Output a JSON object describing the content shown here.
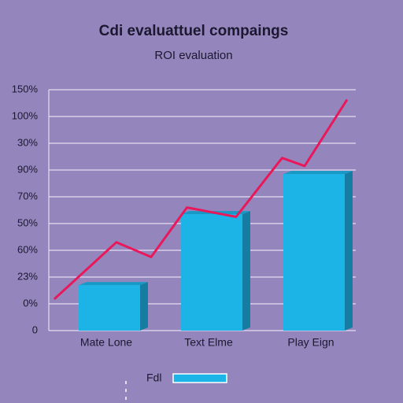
{
  "chart_data": {
    "type": "bar",
    "title": "Cdi evaluattuel compaings",
    "subtitle": "ROI evaluation",
    "categories": [
      "Mate Lone",
      "Text Elme",
      "Play Eign"
    ],
    "ylim": [
      0,
      9
    ],
    "yticks": [
      0,
      1,
      2,
      3,
      4,
      5,
      6,
      7,
      8,
      9
    ],
    "ytick_labels": [
      "0",
      "0%",
      "23%",
      "60%",
      "50%",
      "70%",
      "90%",
      "30%",
      "100%",
      "150%"
    ],
    "grid": true,
    "legend": "bottom",
    "series": [
      {
        "name": "Fdl",
        "type": "bar",
        "color": "#1cb3e6",
        "values": [
          1.7,
          4.35,
          5.85
        ]
      },
      {
        "type": "line",
        "color": "#e8185a",
        "x": [
          0.06,
          0.66,
          1.0,
          1.35,
          1.83,
          2.28,
          2.5,
          2.91
        ],
        "values": [
          1.2,
          3.3,
          2.75,
          4.6,
          4.25,
          6.45,
          6.15,
          8.6
        ]
      }
    ]
  }
}
